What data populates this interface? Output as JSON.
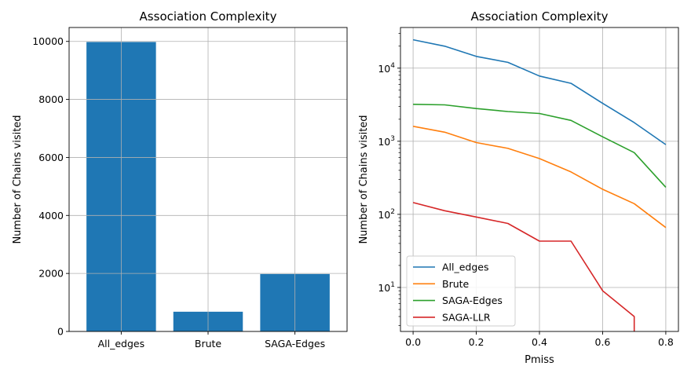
{
  "chart_data": [
    {
      "type": "bar",
      "title": "Association Complexity",
      "xlabel": "",
      "ylabel": "Number of Chains visited",
      "categories": [
        "All_edges",
        "Brute",
        "SAGA-Edges"
      ],
      "values": [
        9980,
        680,
        1980
      ],
      "ylim": [
        0,
        10480
      ],
      "yticks": [
        0,
        2000,
        4000,
        6000,
        8000,
        10000
      ],
      "grid": true,
      "color": "#1f77b4"
    },
    {
      "type": "line",
      "title": "Association Complexity",
      "xlabel": "Pmiss",
      "ylabel": "Number of Chains visited",
      "yscale": "log",
      "xlim": [
        -0.04,
        0.84
      ],
      "ylim": [
        2.5,
        36000
      ],
      "xticks": [
        0.0,
        0.2,
        0.4,
        0.6,
        0.8
      ],
      "yticks": [
        10,
        100,
        1000,
        10000
      ],
      "ytick_labels": [
        "10",
        "10",
        "10",
        "10"
      ],
      "ytick_exponents": [
        "1",
        "2",
        "3",
        "4"
      ],
      "grid": true,
      "legend": "lower-left",
      "x": [
        0.0,
        0.1,
        0.2,
        0.3,
        0.4,
        0.5,
        0.6,
        0.7,
        0.8
      ],
      "series": [
        {
          "name": "All_edges",
          "color": "#1f77b4",
          "values": [
            24500,
            20000,
            14500,
            12000,
            7800,
            6200,
            3300,
            1800,
            900
          ]
        },
        {
          "name": "Brute",
          "color": "#ff7f0e",
          "values": [
            1600,
            1330,
            960,
            800,
            580,
            380,
            220,
            140,
            66
          ]
        },
        {
          "name": "SAGA-Edges",
          "color": "#2ca02c",
          "values": [
            3200,
            3150,
            2800,
            2550,
            2400,
            1930,
            1150,
            700,
            235
          ]
        },
        {
          "name": "SAGA-LLR",
          "color": "#d62728",
          "x": [
            0.0,
            0.1,
            0.2,
            0.3,
            0.4,
            0.5,
            0.6,
            0.7,
            0.7
          ],
          "values": [
            145,
            112,
            92,
            75,
            43,
            43,
            9,
            4,
            2.5
          ]
        }
      ]
    }
  ]
}
